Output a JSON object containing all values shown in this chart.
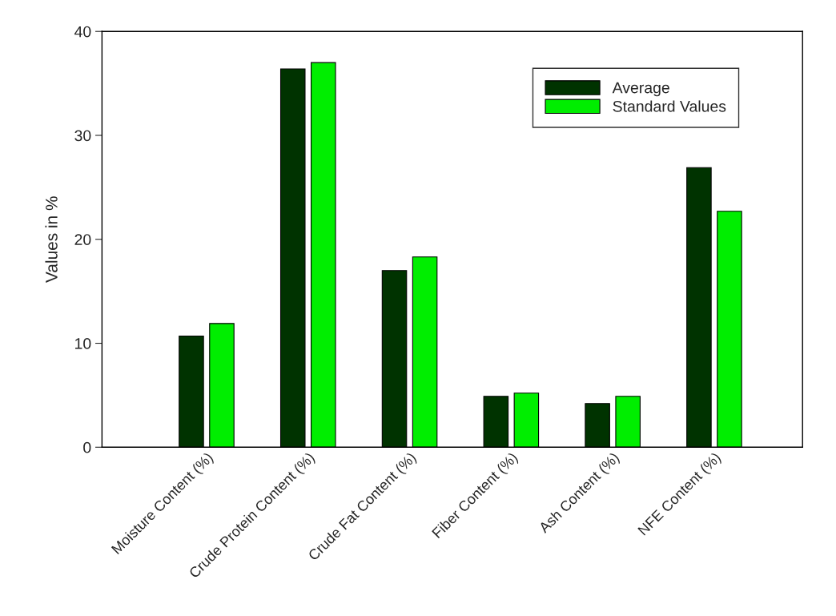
{
  "chart_data": {
    "type": "bar",
    "ylabel": "Values in %",
    "categories": [
      "Moisture Content (%)",
      "Crude Protein Content (%)",
      "Crude Fat Content (%)",
      "Fiber Content (%)",
      "Ash Content (%)",
      "NFE Content (%)"
    ],
    "series": [
      {
        "name": "Average",
        "color": "#003300",
        "values": [
          10.7,
          36.4,
          17.0,
          4.9,
          4.2,
          26.9
        ]
      },
      {
        "name": "Standard Values",
        "color": "#00ee00",
        "values": [
          11.9,
          37.0,
          18.3,
          5.2,
          4.9,
          22.7
        ]
      }
    ],
    "ylim": [
      0,
      40
    ],
    "yticks": [
      0,
      10,
      20,
      30,
      40
    ],
    "grid": false,
    "legend": "top right"
  }
}
